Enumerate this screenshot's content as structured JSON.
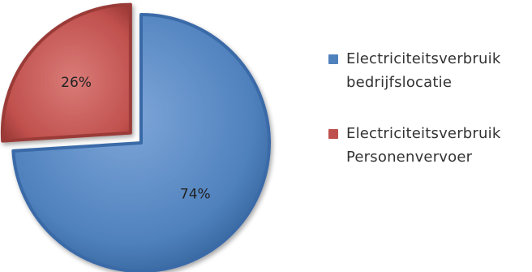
{
  "chart_data": {
    "type": "pie",
    "slices": [
      {
        "label_line1": "Electriciteitsverbruik",
        "label_line2": "bedrijfslocatie",
        "value": 74,
        "value_label": "74%",
        "color": "#4f81bd"
      },
      {
        "label_line1": "Electriciteitsverbruik",
        "label_line2": "Personenvervoer",
        "value": 26,
        "value_label": "26%",
        "color": "#c0504d"
      }
    ],
    "exploded_slice": 1,
    "legend_position": "right",
    "style": "3d-bevel"
  }
}
